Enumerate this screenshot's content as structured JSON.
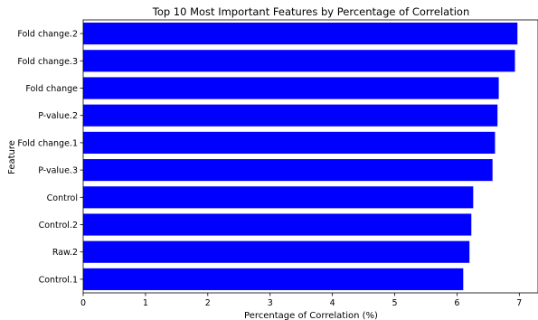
{
  "chart_data": {
    "type": "bar",
    "orientation": "horizontal",
    "title": "Top 10 Most Important Features by Percentage of Correlation",
    "xlabel": "Percentage of Correlation (%)",
    "ylabel": "Feature",
    "categories": [
      "Fold change.2",
      "Fold change.3",
      "Fold change",
      "P-value.2",
      "Fold change.1",
      "P-value.3",
      "Control",
      "Control.2",
      "Raw.2",
      "Control.1"
    ],
    "values": [
      6.97,
      6.93,
      6.67,
      6.65,
      6.61,
      6.57,
      6.26,
      6.23,
      6.2,
      6.1
    ],
    "xlim": [
      0,
      7.3
    ],
    "xticks": [
      0,
      1,
      2,
      3,
      4,
      5,
      6,
      7
    ],
    "bar_color": "#0000ff",
    "grid": false,
    "legend": false
  }
}
